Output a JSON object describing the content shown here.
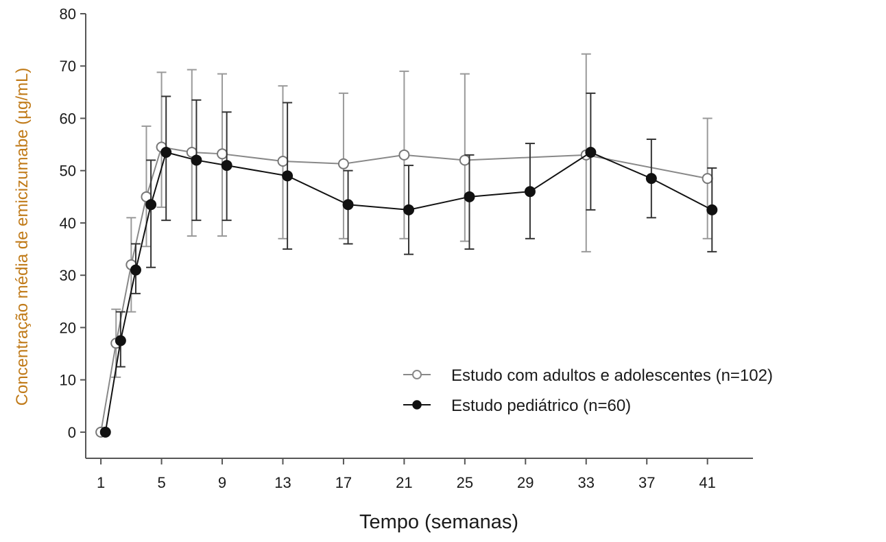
{
  "chart_data": {
    "type": "line",
    "title": "",
    "xlabel": "Tempo (semanas)",
    "ylabel": "Concentração média de emicizumabe (µg/mL)",
    "xlim": [
      0,
      44
    ],
    "ylim": [
      -5,
      80
    ],
    "xticks": [
      1,
      5,
      9,
      13,
      17,
      21,
      25,
      29,
      33,
      37,
      41
    ],
    "yticks": [
      0,
      10,
      20,
      30,
      40,
      50,
      60,
      70,
      80
    ],
    "grid": false,
    "legend_position": "lower-right",
    "colors": {
      "axis": "#555555",
      "ylabel": "#c07a18",
      "series_adults": "#888888",
      "series_pediatric": "#111111"
    },
    "series": [
      {
        "name": "Estudo com adultos e adolescentes (n=102)",
        "marker": "open-circle",
        "x": [
          1,
          2,
          3,
          4,
          5,
          7,
          9,
          13,
          17,
          21,
          25,
          33,
          41
        ],
        "y": [
          0,
          17,
          32,
          45,
          54.5,
          53.5,
          53.2,
          51.8,
          51.3,
          53,
          52,
          53,
          48.5
        ],
        "err_low": [
          0,
          10.5,
          23,
          35.5,
          43,
          37.5,
          37.5,
          37,
          37,
          37,
          36.5,
          34.5,
          37
        ],
        "err_high": [
          0,
          23.5,
          41,
          58.5,
          68.8,
          69.3,
          68.5,
          66.2,
          64.8,
          69,
          68.5,
          72.3,
          60
        ]
      },
      {
        "name": "Estudo pediátrico (n=60)",
        "marker": "filled-circle",
        "x": [
          1.3,
          2.3,
          3.3,
          4.3,
          5.3,
          7.3,
          9.3,
          13.3,
          17.3,
          21.3,
          25.3,
          29.3,
          33.3,
          37.3,
          41.3
        ],
        "y": [
          0,
          17.5,
          31,
          43.5,
          53.5,
          52,
          51,
          49,
          43.5,
          42.5,
          45,
          46,
          53.5,
          48.5,
          42.5
        ],
        "err_low": [
          0,
          12.5,
          26.5,
          31.5,
          40.5,
          40.5,
          40.5,
          35,
          36,
          34,
          35,
          37,
          42.5,
          41,
          34.5
        ],
        "err_high": [
          0,
          23,
          36,
          52,
          64.2,
          63.5,
          61.2,
          63,
          50,
          51,
          53,
          55.2,
          64.8,
          56,
          50.5
        ]
      }
    ]
  }
}
